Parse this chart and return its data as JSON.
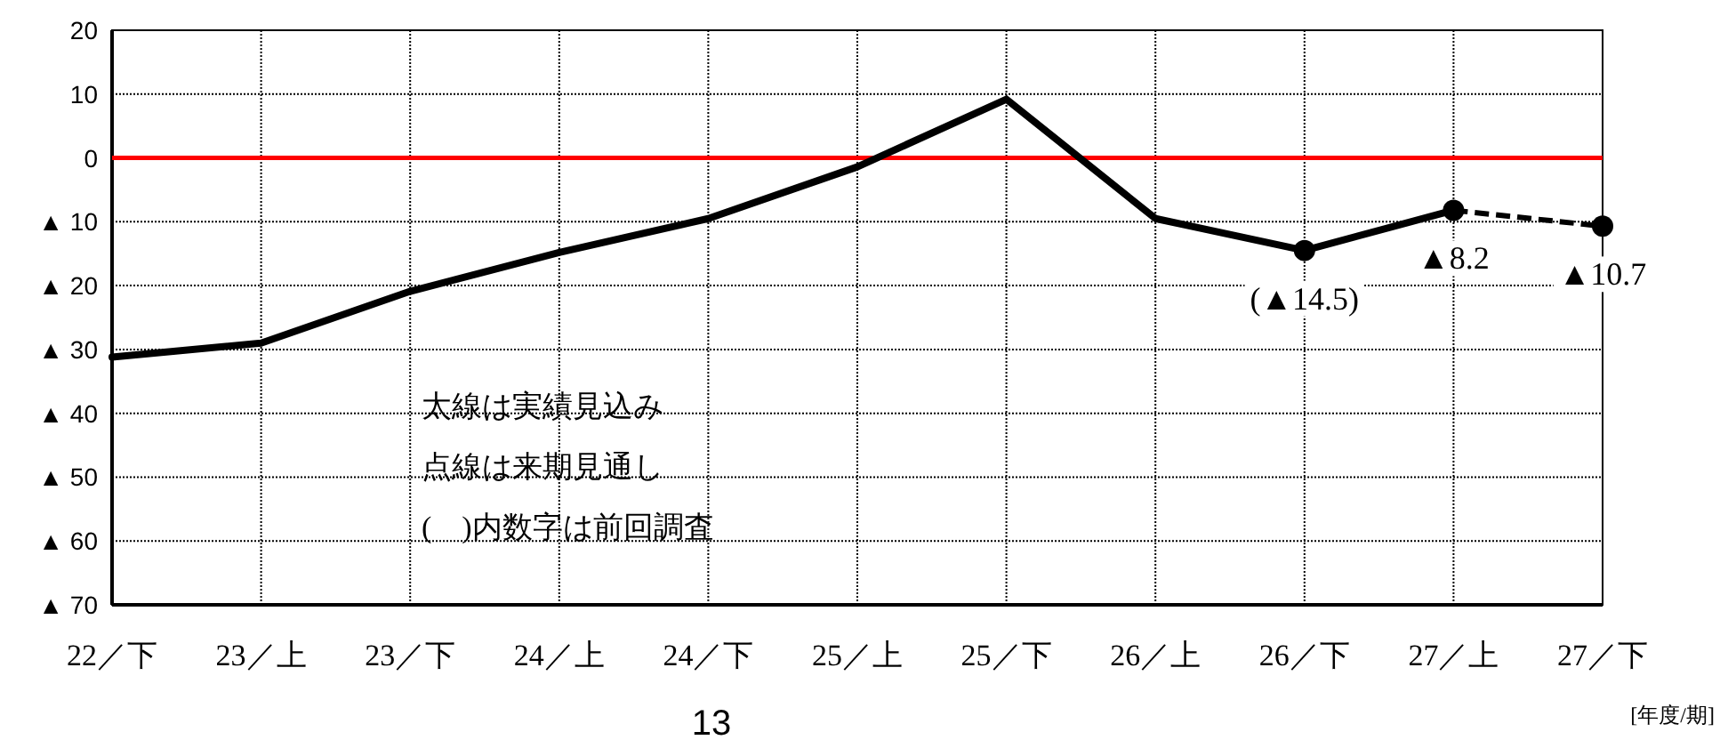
{
  "chart_data": {
    "type": "line",
    "xlabel": "[年度/期]",
    "categories": [
      "22／下",
      "23／上",
      "23／下",
      "24／上",
      "24／下",
      "25／上",
      "25／下",
      "26／上",
      "26／下",
      "27／上",
      "27／下"
    ],
    "series": [
      {
        "color": "#000000",
        "line_style": "solid",
        "marker": "none",
        "values": [
          -31.2,
          -29,
          -20.9,
          -14.8,
          -9.5,
          -1.4,
          9.2,
          -9.5,
          -14.5,
          -8.2,
          null
        ]
      },
      {
        "type": "line",
        "color": "#000000",
        "line_style": "dashed",
        "marker": "circle",
        "values": [
          null,
          null,
          null,
          null,
          null,
          null,
          null,
          null,
          null,
          -8.2,
          -10.7
        ]
      },
      {
        "type": "scatter",
        "color": "#000000",
        "marker": "circle",
        "values": [
          null,
          null,
          null,
          null,
          null,
          null,
          null,
          null,
          -14.5,
          null,
          null
        ]
      }
    ],
    "ylim": [
      -70,
      20
    ],
    "yticks": [
      20,
      10,
      0,
      {
        "value": -10,
        "label": "▲ 10"
      },
      {
        "value": -20,
        "label": "▲ 20"
      },
      {
        "value": -30,
        "label": "▲ 30"
      },
      {
        "value": -40,
        "label": "▲ 40"
      },
      {
        "value": -50,
        "label": "▲ 50"
      },
      {
        "value": -60,
        "label": "▲ 60"
      },
      {
        "value": -70,
        "label": "▲ 70"
      }
    ],
    "grid": true,
    "ref_lines": [
      {
        "axis": "y",
        "value": 0,
        "color": "#ff0000"
      }
    ],
    "annotations": [
      {
        "text": "(▲14.5)",
        "x": "26／下",
        "y": -14.5
      },
      {
        "text": "▲8.2",
        "x": "27／上",
        "y": -8.2
      },
      {
        "text": "▲10.7",
        "x": "27／下",
        "y": -10.7
      },
      "太線は実績見込み",
      "点線は来期見通し",
      "(　)内数字は前回調査",
      "13"
    ]
  }
}
